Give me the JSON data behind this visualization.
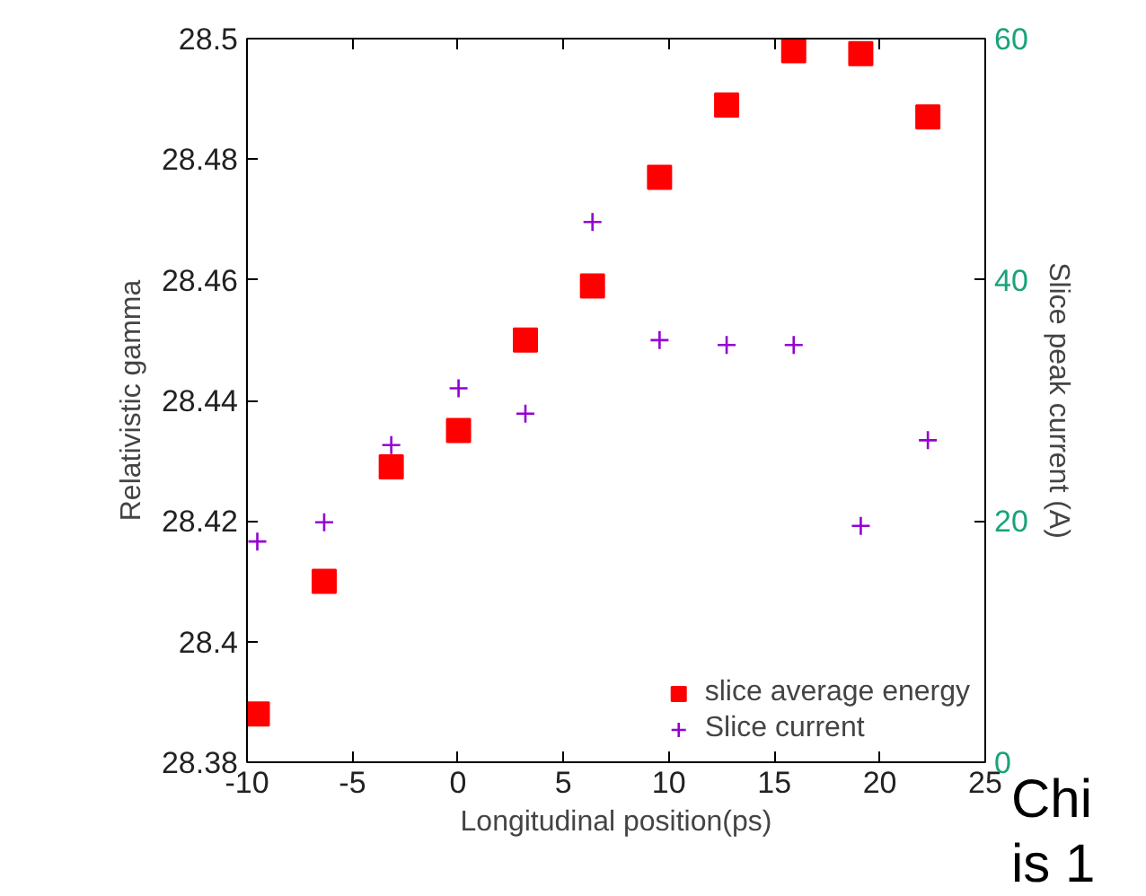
{
  "chart_data": {
    "type": "scatter",
    "xlabel": "Longitudinal position(ps)",
    "ylabel": "Relativistic gamma",
    "y2label": "Slice peak current (A)",
    "xlim": [
      -10,
      25
    ],
    "xticks": [
      -10,
      -5,
      0,
      5,
      10,
      15,
      20,
      25
    ],
    "ylim": [
      28.38,
      28.5
    ],
    "yticks": [
      28.38,
      28.4,
      28.42,
      28.44,
      28.46,
      28.48,
      28.5
    ],
    "y2lim": [
      0,
      60
    ],
    "y2ticks": [
      0,
      20,
      40,
      60
    ],
    "grid": false,
    "legend": "bottom right",
    "series": [
      {
        "name": "slice average energy",
        "color": "#ff0000",
        "marker": "square",
        "x": [
          -9.51,
          -6.34,
          -3.16,
          0.03,
          3.2,
          6.38,
          9.56,
          12.74,
          15.92,
          19.1,
          22.28
        ],
        "values": [
          28.388,
          28.41,
          28.429,
          28.435,
          28.45,
          28.459,
          28.477,
          28.489,
          28.498,
          28.4975,
          28.487
        ]
      },
      {
        "name": "Slice current",
        "color": "#9400d3",
        "marker": "cross",
        "axis": "y2",
        "x": [
          -9.51,
          -6.34,
          -3.16,
          0.03,
          3.2,
          6.38,
          9.56,
          12.74,
          15.92,
          19.1,
          22.28
        ],
        "values": [
          18.3,
          19.9,
          26.3,
          31.0,
          28.9,
          44.8,
          35.0,
          34.6,
          34.6,
          19.6,
          26.7
        ]
      }
    ],
    "annotations": [
      "Chi",
      "is 1"
    ]
  }
}
